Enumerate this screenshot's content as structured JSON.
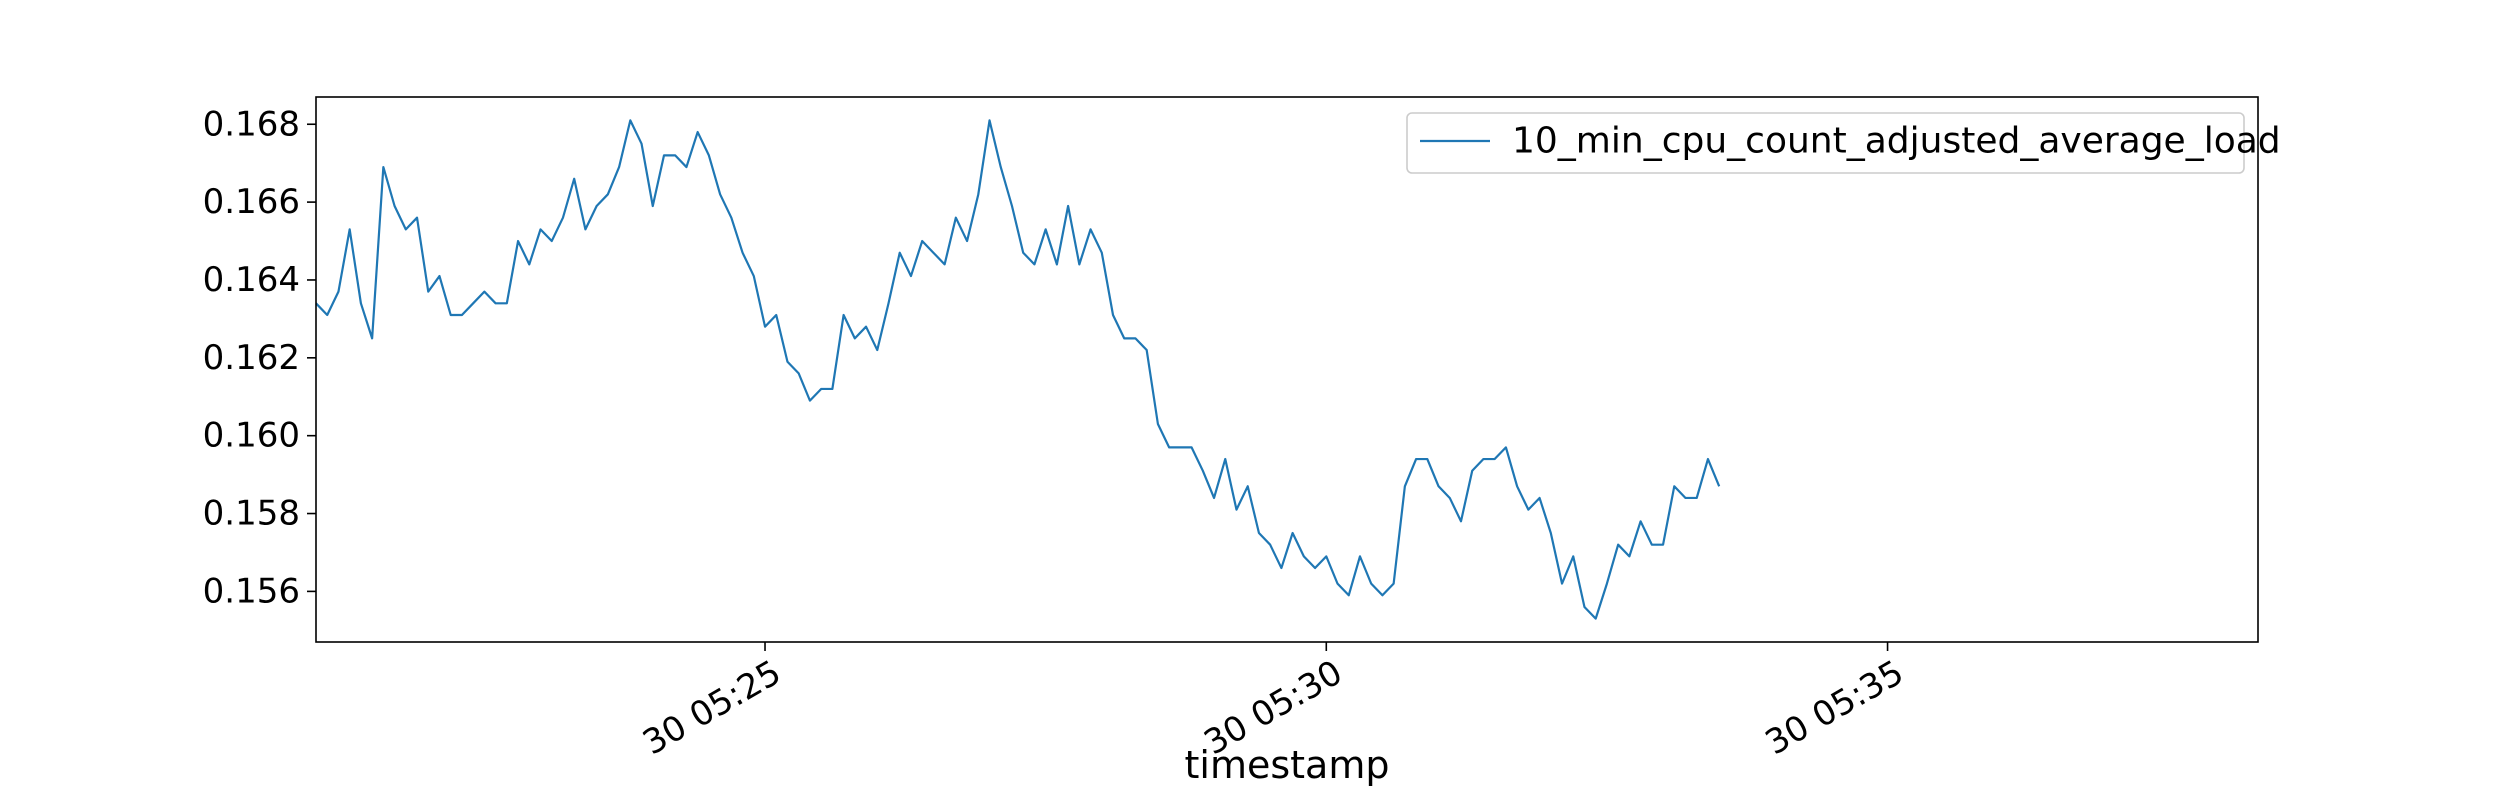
{
  "chart_data": {
    "type": "line",
    "title": "",
    "xlabel": "timestamp",
    "ylabel": "",
    "x_start": "30 05:21:00",
    "x_step_seconds": 6,
    "xlim": [
      "30 05:21:00",
      "30 05:38:18"
    ],
    "ylim": [
      0.1547,
      0.1687
    ],
    "x_ticks": [
      {
        "t": "30 05:25:00",
        "label": "30 05:25"
      },
      {
        "t": "30 05:30:00",
        "label": "30 05:30"
      },
      {
        "t": "30 05:35:00",
        "label": "30 05:35"
      }
    ],
    "y_ticks": [
      {
        "value": 0.156,
        "label": "0.156"
      },
      {
        "value": 0.158,
        "label": "0.158"
      },
      {
        "value": 0.16,
        "label": "0.160"
      },
      {
        "value": 0.162,
        "label": "0.162"
      },
      {
        "value": 0.164,
        "label": "0.164"
      },
      {
        "value": 0.166,
        "label": "0.166"
      },
      {
        "value": 0.168,
        "label": "0.168"
      }
    ],
    "grid": false,
    "legend_position": "top-right",
    "series": [
      {
        "name": "10_min_cpu_count_adjusted_average_load",
        "color": "#1f77b4",
        "values": [
          0.1634,
          0.1631,
          0.1637,
          0.1653,
          0.1634,
          0.1625,
          0.1669,
          0.1659,
          0.1653,
          0.1656,
          0.1637,
          0.1641,
          0.1631,
          0.1631,
          0.1634,
          0.1637,
          0.1634,
          0.1634,
          0.165,
          0.1644,
          0.1653,
          0.165,
          0.1656,
          0.1666,
          0.1653,
          0.1659,
          0.1662,
          0.1669,
          0.1681,
          0.1675,
          0.1659,
          0.1672,
          0.1672,
          0.1669,
          0.1678,
          0.1672,
          0.1662,
          0.1656,
          0.1647,
          0.1641,
          0.1628,
          0.1631,
          0.1619,
          0.1616,
          0.1609,
          0.1612,
          0.1612,
          0.1631,
          0.1625,
          0.1628,
          0.1622,
          0.1634,
          0.1647,
          0.1641,
          0.165,
          0.1647,
          0.1644,
          0.1656,
          0.165,
          0.1662,
          0.1681,
          0.1669,
          0.1659,
          0.1647,
          0.1644,
          0.1653,
          0.1644,
          0.1659,
          0.1644,
          0.1653,
          0.1647,
          0.1631,
          0.1625,
          0.1625,
          0.1622,
          0.1603,
          0.1597,
          0.1597,
          0.1597,
          0.1591,
          0.1584,
          0.1594,
          0.1581,
          0.1587,
          0.1575,
          0.1572,
          0.1566,
          0.1575,
          0.1569,
          0.1566,
          0.1569,
          0.1562,
          0.1559,
          0.1569,
          0.1562,
          0.1559,
          0.1562,
          0.1587,
          0.1594,
          0.1594,
          0.1587,
          0.1584,
          0.1578,
          0.1591,
          0.1594,
          0.1594,
          0.1597,
          0.1587,
          0.1581,
          0.1584,
          0.1575,
          0.1562,
          0.1569,
          0.1556,
          0.1553,
          0.1562,
          0.1572,
          0.1569,
          0.1578,
          0.1572,
          0.1572,
          0.1587,
          0.1584,
          0.1584,
          0.1594,
          0.1587
        ]
      }
    ]
  }
}
